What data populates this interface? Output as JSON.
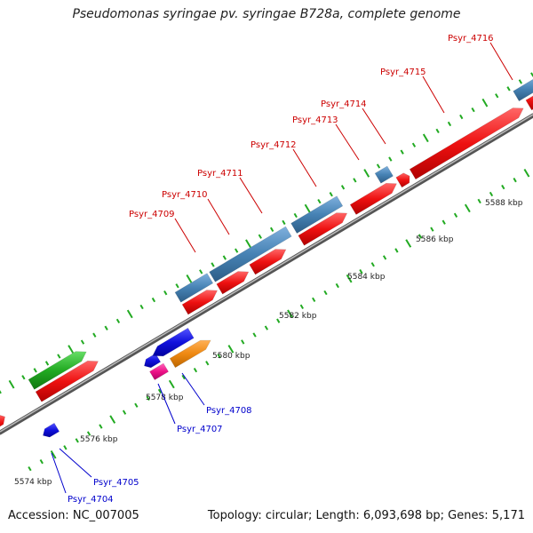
{
  "title": "Pseudomonas syringae pv. syringae B728a, complete genome",
  "accession": "Accession: NC_007005",
  "summary": "Topology: circular; Length: 6,093,698 bp; Genes: 5,171",
  "scale_labels": [
    "5574 kbp",
    "5576 kbp",
    "5578 kbp",
    "5580 kbp",
    "5582 kbp",
    "5584 kbp",
    "5586 kbp",
    "5588 kbp"
  ],
  "genes_forward": [
    "Psyr_4709",
    "Psyr_4710",
    "Psyr_4711",
    "Psyr_4712",
    "Psyr_4713",
    "Psyr_4714",
    "Psyr_4715",
    "Psyr_4716"
  ],
  "genes_reverse": [
    "Psyr_4704",
    "Psyr_4705",
    "Psyr_4707",
    "Psyr_4708"
  ],
  "colors": {
    "forward_label": "#cc0000",
    "reverse_label": "#0000cc",
    "cds_forward": "#ee1111",
    "gene_forward": "#4682b4",
    "cds_green": "#22aa22",
    "cds_reverse": "#1111dd",
    "cds_orange": "#ee8811",
    "cds_pink": "#ee1188",
    "backbone": "#777777",
    "tick": "#22aa22"
  }
}
